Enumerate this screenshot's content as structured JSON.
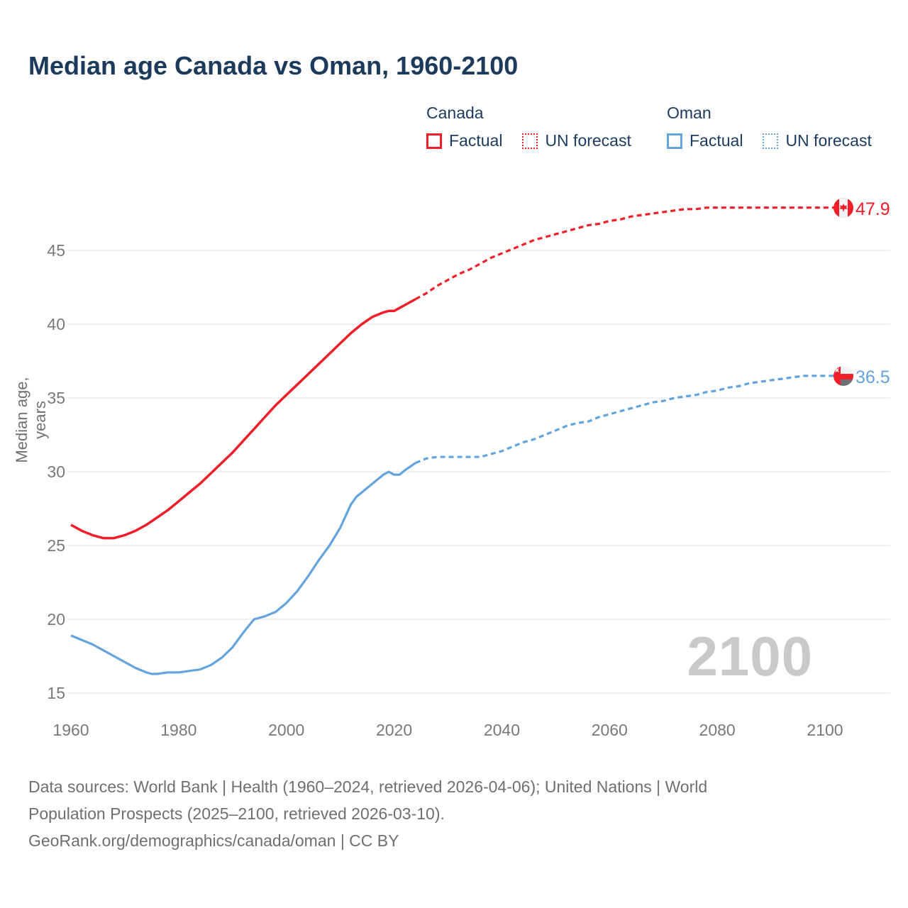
{
  "title": "Median age Canada vs Oman, 1960-2100",
  "legend": {
    "canada": {
      "header": "Canada",
      "factual": "Factual",
      "forecast": "UN forecast"
    },
    "oman": {
      "header": "Oman",
      "factual": "Factual",
      "forecast": "UN forecast"
    }
  },
  "colors": {
    "canada": "#f01e28",
    "oman": "#64a3dc",
    "title_text": "#1c3a5c",
    "tick_text": "#77797b",
    "grid": "#eaeaea",
    "watermark": "#c9c9c9",
    "footer_text": "#6f6f6f",
    "oman_flag_green": "#6d7276",
    "flag_white": "#f2f3f4"
  },
  "axes": {
    "y_label": "Median age, years",
    "y_ticks": [
      15,
      20,
      25,
      30,
      35,
      40,
      45
    ],
    "x_ticks": [
      1960,
      1980,
      2000,
      2020,
      2040,
      2060,
      2080,
      2100
    ]
  },
  "end_labels": {
    "canada": {
      "value": "47.9",
      "flag": "canada-flag"
    },
    "oman": {
      "value": "36.5",
      "flag": "oman-flag"
    }
  },
  "watermark": "2100",
  "footer": {
    "lines": [
      "Data sources: World Bank | Health (1960–2024, retrieved 2026-04-06); United Nations | World",
      "Population Prospects (2025–2100, retrieved 2026-03-10).",
      "GeoRank.org/demographics/canada/oman | CC BY"
    ]
  },
  "chart_data": {
    "type": "line",
    "title": "Median age Canada vs Oman, 1960-2100",
    "xlabel": "",
    "ylabel": "Median age, years",
    "xlim": [
      1960,
      2100
    ],
    "ylim": [
      15,
      48.5
    ],
    "grid": "horizontal-only",
    "legend_position": "top-right",
    "series": [
      {
        "name": "Canada factual",
        "color": "#f01e28",
        "style": "solid",
        "width": 3.5,
        "points": [
          [
            1960,
            26.4
          ],
          [
            1962,
            26.0
          ],
          [
            1964,
            25.7
          ],
          [
            1966,
            25.5
          ],
          [
            1968,
            25.5
          ],
          [
            1970,
            25.7
          ],
          [
            1972,
            26.0
          ],
          [
            1974,
            26.4
          ],
          [
            1976,
            26.9
          ],
          [
            1978,
            27.4
          ],
          [
            1980,
            28.0
          ],
          [
            1982,
            28.6
          ],
          [
            1984,
            29.2
          ],
          [
            1986,
            29.9
          ],
          [
            1988,
            30.6
          ],
          [
            1990,
            31.3
          ],
          [
            1992,
            32.1
          ],
          [
            1994,
            32.9
          ],
          [
            1996,
            33.7
          ],
          [
            1998,
            34.5
          ],
          [
            2000,
            35.2
          ],
          [
            2002,
            35.9
          ],
          [
            2004,
            36.6
          ],
          [
            2006,
            37.3
          ],
          [
            2008,
            38.0
          ],
          [
            2010,
            38.7
          ],
          [
            2012,
            39.4
          ],
          [
            2014,
            40.0
          ],
          [
            2016,
            40.5
          ],
          [
            2018,
            40.8
          ],
          [
            2019,
            40.9
          ],
          [
            2020,
            40.9
          ],
          [
            2021,
            41.1
          ],
          [
            2022,
            41.3
          ],
          [
            2024,
            41.7
          ]
        ]
      },
      {
        "name": "Canada UN forecast",
        "color": "#f01e28",
        "style": "dashed",
        "width": 3.2,
        "points": [
          [
            2024,
            41.7
          ],
          [
            2026,
            42.1
          ],
          [
            2028,
            42.6
          ],
          [
            2030,
            43.0
          ],
          [
            2032,
            43.4
          ],
          [
            2034,
            43.7
          ],
          [
            2036,
            44.1
          ],
          [
            2038,
            44.5
          ],
          [
            2040,
            44.8
          ],
          [
            2042,
            45.1
          ],
          [
            2044,
            45.4
          ],
          [
            2046,
            45.7
          ],
          [
            2048,
            45.9
          ],
          [
            2050,
            46.1
          ],
          [
            2052,
            46.3
          ],
          [
            2054,
            46.5
          ],
          [
            2056,
            46.7
          ],
          [
            2058,
            46.8
          ],
          [
            2060,
            47.0
          ],
          [
            2062,
            47.1
          ],
          [
            2064,
            47.3
          ],
          [
            2066,
            47.4
          ],
          [
            2068,
            47.5
          ],
          [
            2070,
            47.6
          ],
          [
            2072,
            47.7
          ],
          [
            2074,
            47.8
          ],
          [
            2076,
            47.8
          ],
          [
            2078,
            47.9
          ],
          [
            2080,
            47.9
          ],
          [
            2085,
            47.9
          ],
          [
            2090,
            47.9
          ],
          [
            2095,
            47.9
          ],
          [
            2100,
            47.9
          ]
        ]
      },
      {
        "name": "Oman factual",
        "color": "#64a3dc",
        "style": "solid",
        "width": 3.2,
        "points": [
          [
            1960,
            18.9
          ],
          [
            1962,
            18.6
          ],
          [
            1964,
            18.3
          ],
          [
            1966,
            17.9
          ],
          [
            1968,
            17.5
          ],
          [
            1970,
            17.1
          ],
          [
            1972,
            16.7
          ],
          [
            1974,
            16.4
          ],
          [
            1975,
            16.3
          ],
          [
            1976,
            16.3
          ],
          [
            1978,
            16.4
          ],
          [
            1980,
            16.4
          ],
          [
            1982,
            16.5
          ],
          [
            1984,
            16.6
          ],
          [
            1986,
            16.9
          ],
          [
            1988,
            17.4
          ],
          [
            1990,
            18.1
          ],
          [
            1992,
            19.1
          ],
          [
            1994,
            20.0
          ],
          [
            1996,
            20.2
          ],
          [
            1998,
            20.5
          ],
          [
            2000,
            21.1
          ],
          [
            2002,
            21.9
          ],
          [
            2004,
            22.9
          ],
          [
            2006,
            24.0
          ],
          [
            2008,
            25.0
          ],
          [
            2010,
            26.2
          ],
          [
            2011,
            27.0
          ],
          [
            2012,
            27.8
          ],
          [
            2013,
            28.3
          ],
          [
            2014,
            28.6
          ],
          [
            2016,
            29.2
          ],
          [
            2018,
            29.8
          ],
          [
            2019,
            30.0
          ],
          [
            2020,
            29.8
          ],
          [
            2021,
            29.8
          ],
          [
            2022,
            30.1
          ],
          [
            2024,
            30.6
          ]
        ]
      },
      {
        "name": "Oman UN forecast",
        "color": "#64a3dc",
        "style": "dashed",
        "width": 3.2,
        "points": [
          [
            2024,
            30.6
          ],
          [
            2026,
            30.9
          ],
          [
            2028,
            31.0
          ],
          [
            2030,
            31.0
          ],
          [
            2032,
            31.0
          ],
          [
            2034,
            31.0
          ],
          [
            2036,
            31.0
          ],
          [
            2038,
            31.2
          ],
          [
            2040,
            31.4
          ],
          [
            2042,
            31.7
          ],
          [
            2044,
            32.0
          ],
          [
            2046,
            32.2
          ],
          [
            2048,
            32.5
          ],
          [
            2050,
            32.8
          ],
          [
            2052,
            33.1
          ],
          [
            2054,
            33.3
          ],
          [
            2056,
            33.4
          ],
          [
            2058,
            33.7
          ],
          [
            2060,
            33.9
          ],
          [
            2062,
            34.1
          ],
          [
            2064,
            34.3
          ],
          [
            2066,
            34.5
          ],
          [
            2068,
            34.7
          ],
          [
            2070,
            34.8
          ],
          [
            2072,
            35.0
          ],
          [
            2074,
            35.1
          ],
          [
            2076,
            35.2
          ],
          [
            2078,
            35.4
          ],
          [
            2080,
            35.5
          ],
          [
            2082,
            35.7
          ],
          [
            2084,
            35.8
          ],
          [
            2086,
            36.0
          ],
          [
            2088,
            36.1
          ],
          [
            2090,
            36.2
          ],
          [
            2092,
            36.3
          ],
          [
            2094,
            36.4
          ],
          [
            2096,
            36.5
          ],
          [
            2098,
            36.5
          ],
          [
            2100,
            36.5
          ]
        ]
      }
    ]
  }
}
